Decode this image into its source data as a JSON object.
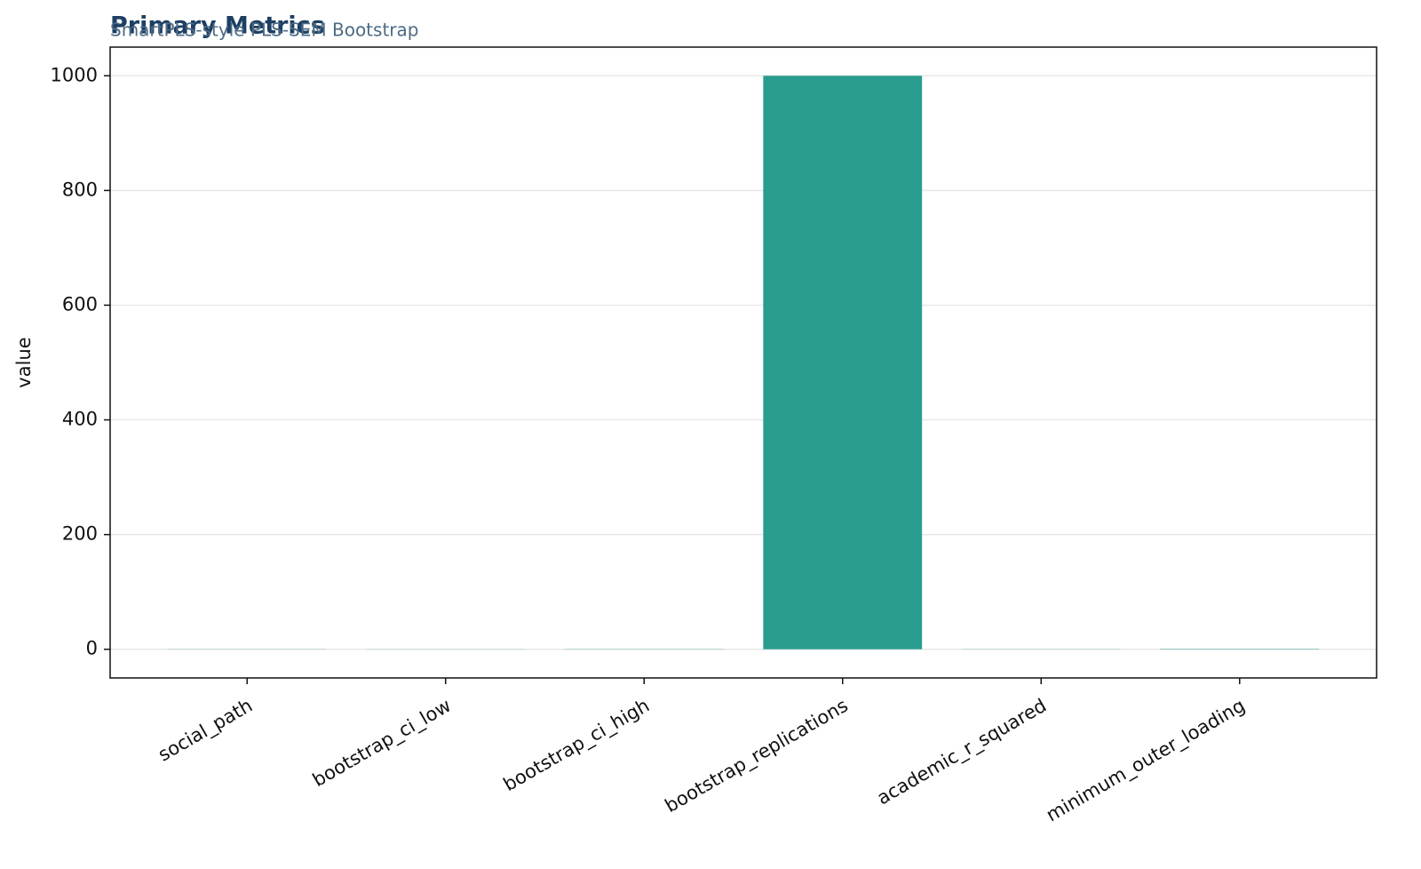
{
  "chart_data": {
    "type": "bar",
    "title": "Primary Metrics",
    "subtitle": "SmartPLS-style PLS-SEM Bootstrap",
    "y_label": "value",
    "categories": [
      "social_path",
      "bootstrap_ci_low",
      "bootstrap_ci_high",
      "bootstrap_replications",
      "academic_r_squared",
      "minimum_outer_loading"
    ],
    "values": [
      0.3,
      0.2,
      0.4,
      1000,
      0.3,
      0.7
    ],
    "color": "#2a9d8f",
    "ylim": [
      -50,
      1050
    ],
    "yticks": [
      0,
      200,
      400,
      600,
      800,
      1000
    ],
    "grid": true
  }
}
